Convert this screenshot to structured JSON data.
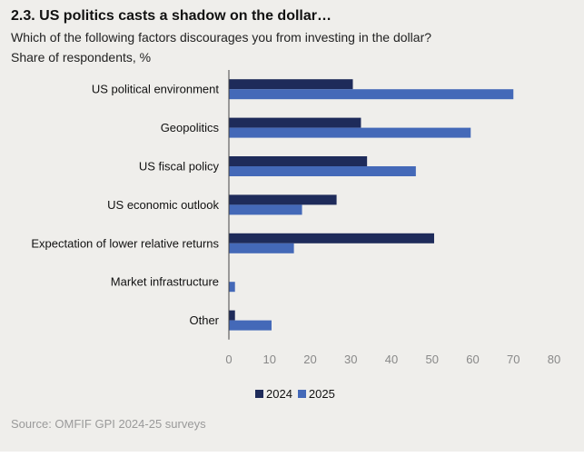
{
  "title": "2.3. US politics casts a shadow on the dollar…",
  "subtitle": "Which of the following factors discourages you from investing in the dollar?",
  "unit_label": "Share of respondents, %",
  "source": "Source: OMFIF GPI 2024-25 surveys",
  "colors": {
    "series_2024": "#1e2b5a",
    "series_2025": "#4469b8",
    "panel_bg": "#efeeeb",
    "axis": "#444444"
  },
  "chart_data": {
    "type": "bar",
    "orientation": "horizontal",
    "categories": [
      "US political environment",
      "Geopolitics",
      "US fiscal policy",
      "US economic outlook",
      "Expectation of lower relative returns",
      "Market infrastructure",
      "Other"
    ],
    "series": [
      {
        "name": "2024",
        "values": [
          30.5,
          32.5,
          34,
          26.5,
          50.5,
          0,
          1.5
        ]
      },
      {
        "name": "2025",
        "values": [
          70,
          59.5,
          46,
          18,
          16,
          1.5,
          10.5
        ]
      }
    ],
    "xlim": [
      0,
      80
    ],
    "xticks": [
      0,
      10,
      20,
      30,
      40,
      50,
      60,
      70,
      80
    ],
    "xlabel": "",
    "ylabel": "",
    "legend_position": "bottom-center"
  }
}
